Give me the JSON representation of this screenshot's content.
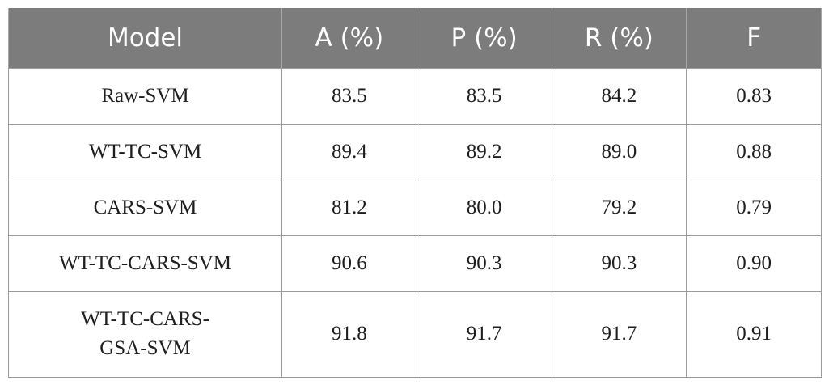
{
  "table": {
    "headers": [
      "Model",
      "A (%)",
      "P (%)",
      "R (%)",
      "F"
    ],
    "rows": [
      {
        "model_lines": [
          "Raw-SVM"
        ],
        "A": "83.5",
        "P": "83.5",
        "R": "84.2",
        "F": "0.83"
      },
      {
        "model_lines": [
          "WT-TC-SVM"
        ],
        "A": "89.4",
        "P": "89.2",
        "R": "89.0",
        "F": "0.88"
      },
      {
        "model_lines": [
          "CARS-SVM"
        ],
        "A": "81.2",
        "P": "80.0",
        "R": "79.2",
        "F": "0.79"
      },
      {
        "model_lines": [
          "WT-TC-CARS-SVM"
        ],
        "A": "90.6",
        "P": "90.3",
        "R": "90.3",
        "F": "0.90"
      },
      {
        "model_lines": [
          "WT-TC-CARS-",
          "GSA-SVM"
        ],
        "A": "91.8",
        "P": "91.7",
        "R": "91.7",
        "F": "0.91"
      }
    ]
  },
  "colors": {
    "header_bg": "#7c7c7c",
    "header_text": "#ffffff",
    "border": "#9a9a9a",
    "body_text": "#1e1e1e"
  }
}
